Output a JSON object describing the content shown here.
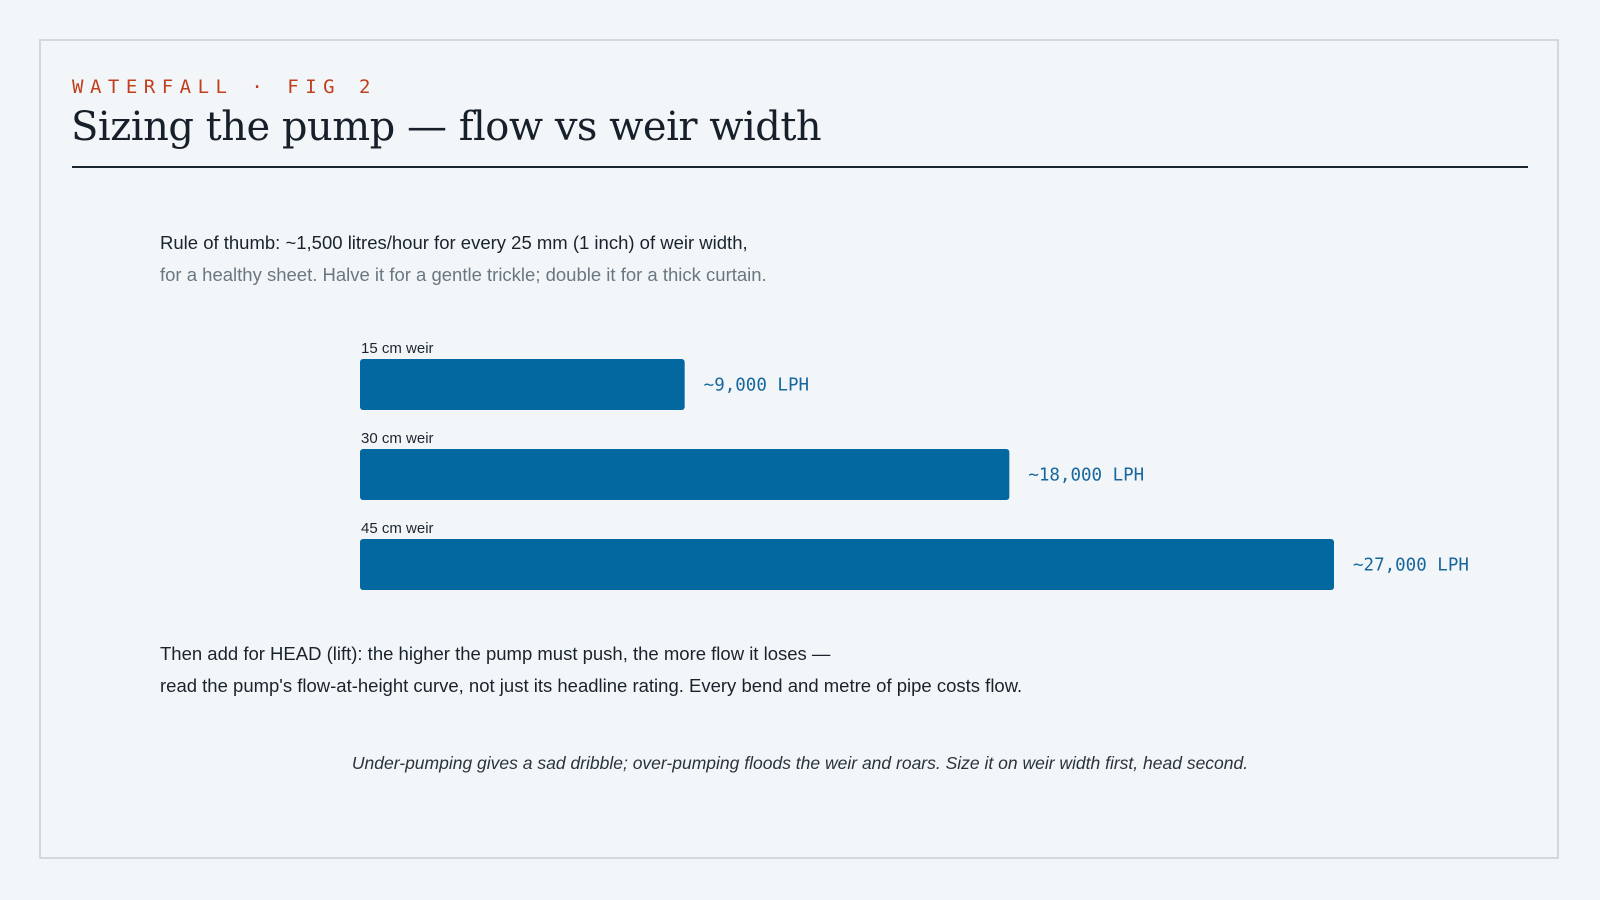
{
  "header": {
    "eyebrow": "WATERFALL · FIG 2",
    "title": "Sizing the pump — flow vs weir width"
  },
  "lede": {
    "line1": "Rule of thumb: ~1,500 litres/hour for every 25 mm (1 inch) of weir width,",
    "line2": "for a healthy sheet. Halve it for a gentle trickle; double it for a thick curtain."
  },
  "chart_data": {
    "type": "bar",
    "orientation": "horizontal",
    "categories": [
      "15 cm weir",
      "30 cm weir",
      "45 cm weir"
    ],
    "values": [
      9000,
      18000,
      27000
    ],
    "value_labels": [
      "~9,000 LPH",
      "~18,000 LPH",
      "~27,000 LPH"
    ],
    "bar_color": "#0368a0",
    "xlim": [
      0,
      27000
    ],
    "grid": false,
    "legend": "none"
  },
  "body": {
    "line1": "Then add for HEAD (lift): the higher the pump must push, the more flow it loses —",
    "line2": "read the pump's flow-at-height curve, not just its headline rating. Every bend and metre of pipe costs flow."
  },
  "footnote": "Under-pumping gives a sad dribble; over-pumping floods the weir and roars. Size it on weir width first, head second."
}
